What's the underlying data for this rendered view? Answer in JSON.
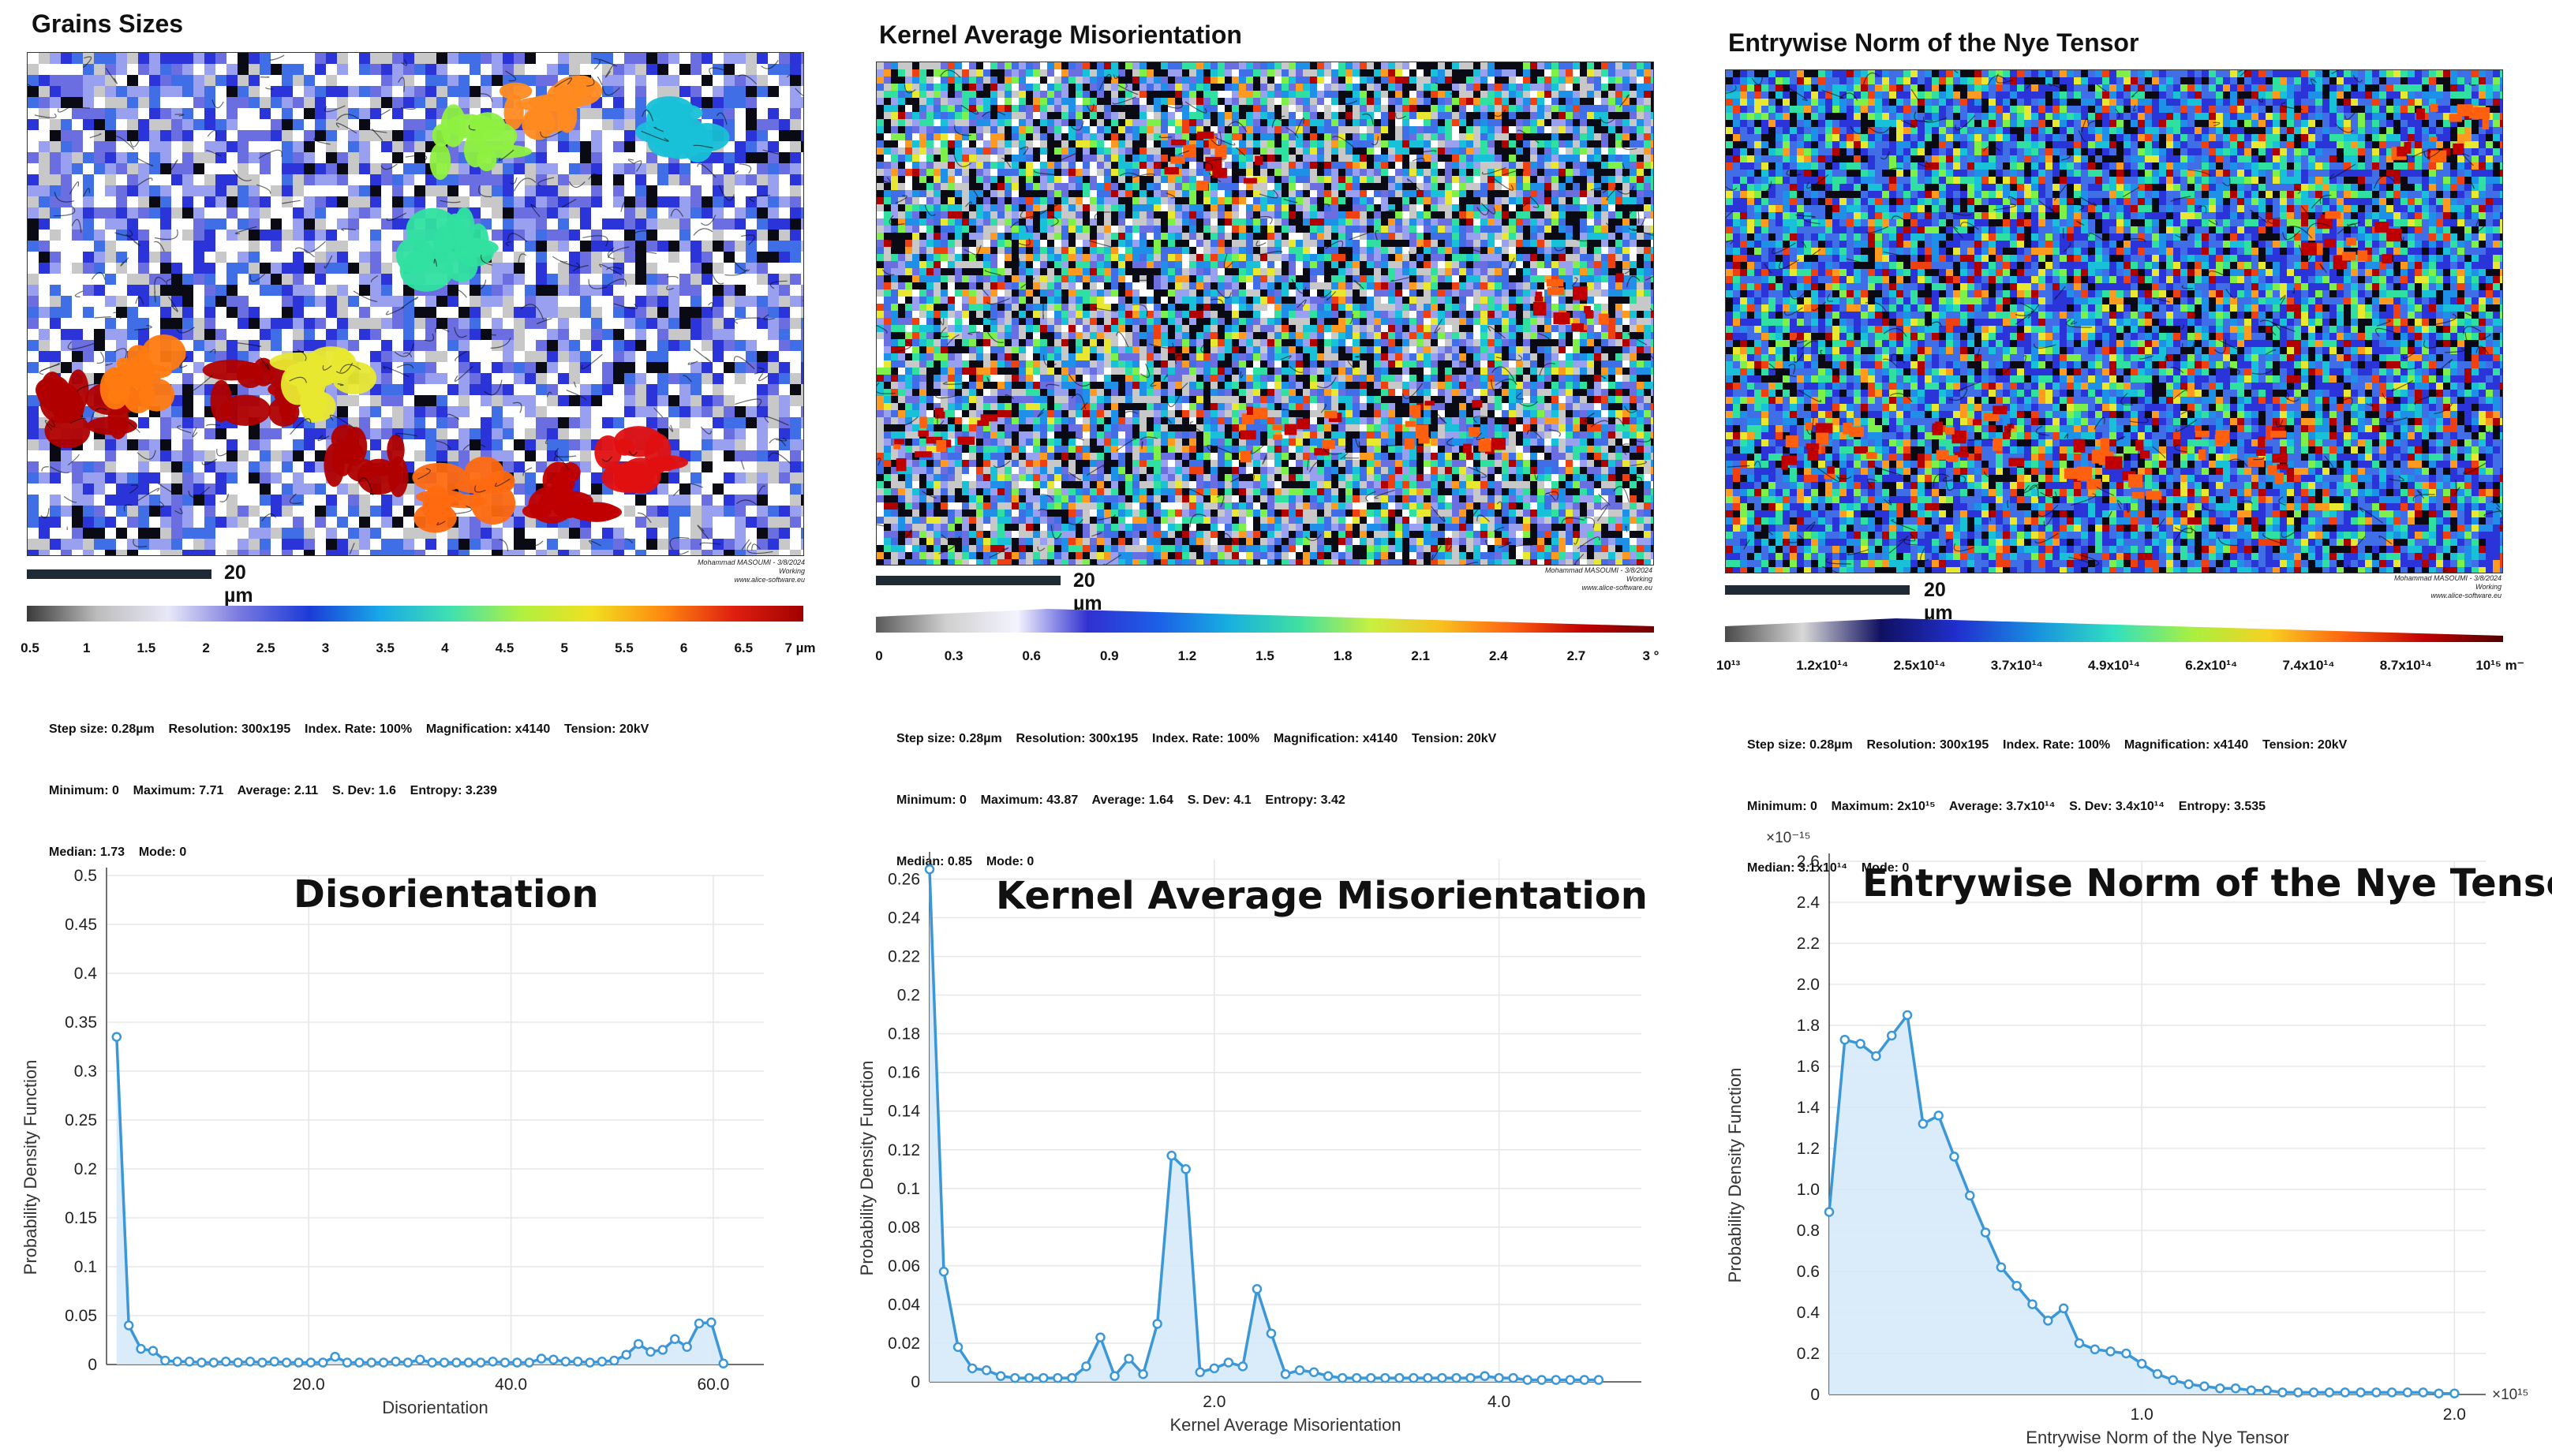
{
  "maps": [
    {
      "title": "Grains Sizes",
      "scale_label": "20 µm",
      "credit": [
        "Mohammad MASOUMI - 3/8/2024",
        "Working",
        "www.alice-software.eu"
      ],
      "colorbar_ticks": [
        "0.5",
        "1",
        "1.5",
        "2",
        "2.5",
        "3",
        "3.5",
        "4",
        "4.5",
        "5",
        "5.5",
        "6",
        "6.5",
        "7 µm"
      ],
      "stats": [
        "Step size: 0.28µm    Resolution: 300x195    Index. Rate: 100%    Magnification: x4140    Tension: 20kV",
        "Minimum: 0    Maximum: 7.71    Average: 2.11    S. Dev: 1.6    Entropy: 3.239",
        "Median: 1.73    Mode: 0"
      ]
    },
    {
      "title": "Kernel Average Misorientation",
      "scale_label": "20 µm",
      "credit": [
        "Mohammad MASOUMI - 3/8/2024",
        "Working",
        "www.alice-software.eu"
      ],
      "colorbar_ticks": [
        "0",
        "0.3",
        "0.6",
        "0.9",
        "1.2",
        "1.5",
        "1.8",
        "2.1",
        "2.4",
        "2.7",
        "3 °"
      ],
      "stats": [
        "Step size: 0.28µm    Resolution: 300x195    Index. Rate: 100%    Magnification: x4140    Tension: 20kV",
        "Minimum: 0    Maximum: 43.87    Average: 1.64    S. Dev: 4.1    Entropy: 3.42",
        "Median: 0.85    Mode: 0"
      ]
    },
    {
      "title": "Entrywise Norm of the Nye Tensor",
      "scale_label": "20 µm",
      "credit": [
        "Mohammad MASOUMI - 3/8/2024",
        "Working",
        "www.alice-software.eu"
      ],
      "colorbar_ticks": [
        "10¹³",
        "1.2x10¹⁴",
        "2.5x10¹⁴",
        "3.7x10¹⁴",
        "4.9x10¹⁴",
        "6.2x10¹⁴",
        "7.4x10¹⁴",
        "8.7x10¹⁴",
        "10¹⁵ m⁻"
      ],
      "stats": [
        "Step size: 0.28µm    Resolution: 300x195    Index. Rate: 100%    Magnification: x4140    Tension: 20kV",
        "Minimum: 0    Maximum: 2x10¹⁵    Average: 3.7x10¹⁴    S. Dev: 3.4x10¹⁴    Entropy: 3.535",
        "Median: 3.1x10¹⁴    Mode: 0"
      ]
    }
  ],
  "colors": {
    "line": "#3b97d8",
    "fill": "#d6e9f8",
    "grid": "#e6e6e6",
    "map_palette": [
      "#ffffff",
      "#c8c8c8",
      "#8f8f8f",
      "#2a34d8",
      "#3f6ee6",
      "#6a6ee0",
      "#9aa0f0",
      "#1e90e8",
      "#18c0d8",
      "#30e0a0",
      "#7ef04a",
      "#e8e830",
      "#ff9a20",
      "#ee4010",
      "#b00000",
      "#0a0a14"
    ]
  },
  "chart_data": [
    {
      "type": "area",
      "title": "Disorientation",
      "xlabel": "Disorientation",
      "ylabel": "Probability Density Function",
      "xlim": [
        0,
        65
      ],
      "ylim": [
        0,
        0.5
      ],
      "x_ticks": [
        "20.0",
        "40.0",
        "60.0"
      ],
      "x_tick_values": [
        20,
        40,
        60
      ],
      "y_ticks": [
        "0",
        "0.05",
        "0.1",
        "0.15",
        "0.2",
        "0.25",
        "0.3",
        "0.35",
        "0.4",
        "0.45",
        "0.5"
      ],
      "y_tick_values": [
        0,
        0.05,
        0.1,
        0.15,
        0.2,
        0.25,
        0.3,
        0.35,
        0.4,
        0.45,
        0.5
      ],
      "x": [
        1,
        2.2,
        3.4,
        4.6,
        5.8,
        7,
        8.2,
        9.4,
        10.6,
        11.8,
        13,
        14.2,
        15.4,
        16.6,
        17.8,
        19,
        20.2,
        21.4,
        22.6,
        23.8,
        25,
        26.2,
        27.4,
        28.6,
        29.8,
        31,
        32.2,
        33.4,
        34.6,
        35.8,
        37,
        38.2,
        39.4,
        40.6,
        41.8,
        43,
        44.2,
        45.4,
        46.6,
        47.8,
        49,
        50.2,
        51.4,
        52.6,
        53.8,
        55,
        56.2,
        57.4,
        58.6,
        59.8,
        61
      ],
      "values": [
        0.335,
        0.04,
        0.016,
        0.014,
        0.004,
        0.003,
        0.003,
        0.002,
        0.002,
        0.003,
        0.002,
        0.003,
        0.002,
        0.003,
        0.002,
        0.002,
        0.002,
        0.002,
        0.008,
        0.002,
        0.002,
        0.002,
        0.002,
        0.003,
        0.002,
        0.005,
        0.002,
        0.002,
        0.002,
        0.002,
        0.002,
        0.003,
        0.002,
        0.002,
        0.002,
        0.006,
        0.005,
        0.003,
        0.003,
        0.002,
        0.003,
        0.004,
        0.01,
        0.021,
        0.013,
        0.015,
        0.026,
        0.018,
        0.042,
        0.043,
        0.001
      ]
    },
    {
      "type": "area",
      "title": "Kernel Average Misorientation",
      "xlabel": "Kernel Average Misorientation",
      "ylabel": "Probability Density Function",
      "xlim": [
        0,
        5.0
      ],
      "ylim": [
        0,
        0.27
      ],
      "x_ticks": [
        "2.0",
        "4.0"
      ],
      "x_tick_values": [
        2,
        4
      ],
      "y_ticks": [
        "0",
        "0.02",
        "0.04",
        "0.06",
        "0.08",
        "0.1",
        "0.12",
        "0.14",
        "0.16",
        "0.18",
        "0.2",
        "0.22",
        "0.24",
        "0.26"
      ],
      "y_tick_values": [
        0,
        0.02,
        0.04,
        0.06,
        0.08,
        0.1,
        0.12,
        0.14,
        0.16,
        0.18,
        0.2,
        0.22,
        0.24,
        0.26
      ],
      "x": [
        0,
        0.1,
        0.2,
        0.3,
        0.4,
        0.5,
        0.6,
        0.7,
        0.8,
        0.9,
        1.0,
        1.1,
        1.2,
        1.3,
        1.4,
        1.5,
        1.6,
        1.7,
        1.8,
        1.9,
        2.0,
        2.1,
        2.2,
        2.3,
        2.4,
        2.5,
        2.6,
        2.7,
        2.8,
        2.9,
        3.0,
        3.1,
        3.2,
        3.3,
        3.4,
        3.5,
        3.6,
        3.7,
        3.8,
        3.9,
        4.0,
        4.1,
        4.2,
        4.3,
        4.4,
        4.5,
        4.6,
        4.7
      ],
      "values": [
        0.265,
        0.057,
        0.018,
        0.007,
        0.006,
        0.003,
        0.002,
        0.002,
        0.002,
        0.002,
        0.002,
        0.008,
        0.023,
        0.003,
        0.012,
        0.004,
        0.03,
        0.117,
        0.11,
        0.005,
        0.007,
        0.01,
        0.008,
        0.048,
        0.025,
        0.004,
        0.006,
        0.005,
        0.003,
        0.002,
        0.002,
        0.002,
        0.002,
        0.002,
        0.002,
        0.002,
        0.002,
        0.002,
        0.002,
        0.003,
        0.002,
        0.002,
        0.001,
        0.001,
        0.001,
        0.001,
        0.001,
        0.001
      ]
    },
    {
      "type": "area",
      "title": "Entrywise Norm of the Nye Tensor",
      "xlabel": "Entrywise Norm of the Nye Tensor",
      "ylabel": "Probability Density Function",
      "y_multiplier": "×10⁻¹⁵",
      "x_multiplier": "×10¹⁵",
      "xlim": [
        0,
        2.1
      ],
      "ylim": [
        0,
        2.6
      ],
      "x_ticks": [
        "1.0",
        "2.0"
      ],
      "x_tick_values": [
        1,
        2
      ],
      "y_ticks": [
        "0",
        "0.2",
        "0.4",
        "0.6",
        "0.8",
        "1.0",
        "1.2",
        "1.4",
        "1.6",
        "1.8",
        "2.0",
        "2.2",
        "2.4",
        "2.6"
      ],
      "y_tick_values": [
        0,
        0.2,
        0.4,
        0.6,
        0.8,
        1.0,
        1.2,
        1.4,
        1.6,
        1.8,
        2.0,
        2.2,
        2.4,
        2.6
      ],
      "x": [
        0,
        0.05,
        0.1,
        0.15,
        0.2,
        0.25,
        0.3,
        0.35,
        0.4,
        0.45,
        0.5,
        0.55,
        0.6,
        0.65,
        0.7,
        0.75,
        0.8,
        0.85,
        0.9,
        0.95,
        1.0,
        1.05,
        1.1,
        1.15,
        1.2,
        1.25,
        1.3,
        1.35,
        1.4,
        1.45,
        1.5,
        1.55,
        1.6,
        1.65,
        1.7,
        1.75,
        1.8,
        1.85,
        1.9,
        1.95,
        2.0
      ],
      "values": [
        0.89,
        1.73,
        1.71,
        1.65,
        1.75,
        1.85,
        1.32,
        1.36,
        1.16,
        0.97,
        0.79,
        0.62,
        0.53,
        0.44,
        0.36,
        0.42,
        0.25,
        0.22,
        0.21,
        0.2,
        0.15,
        0.1,
        0.07,
        0.05,
        0.04,
        0.03,
        0.03,
        0.02,
        0.02,
        0.01,
        0.01,
        0.01,
        0.01,
        0.01,
        0.01,
        0.01,
        0.01,
        0.01,
        0.01,
        0.005,
        0.005
      ]
    }
  ]
}
